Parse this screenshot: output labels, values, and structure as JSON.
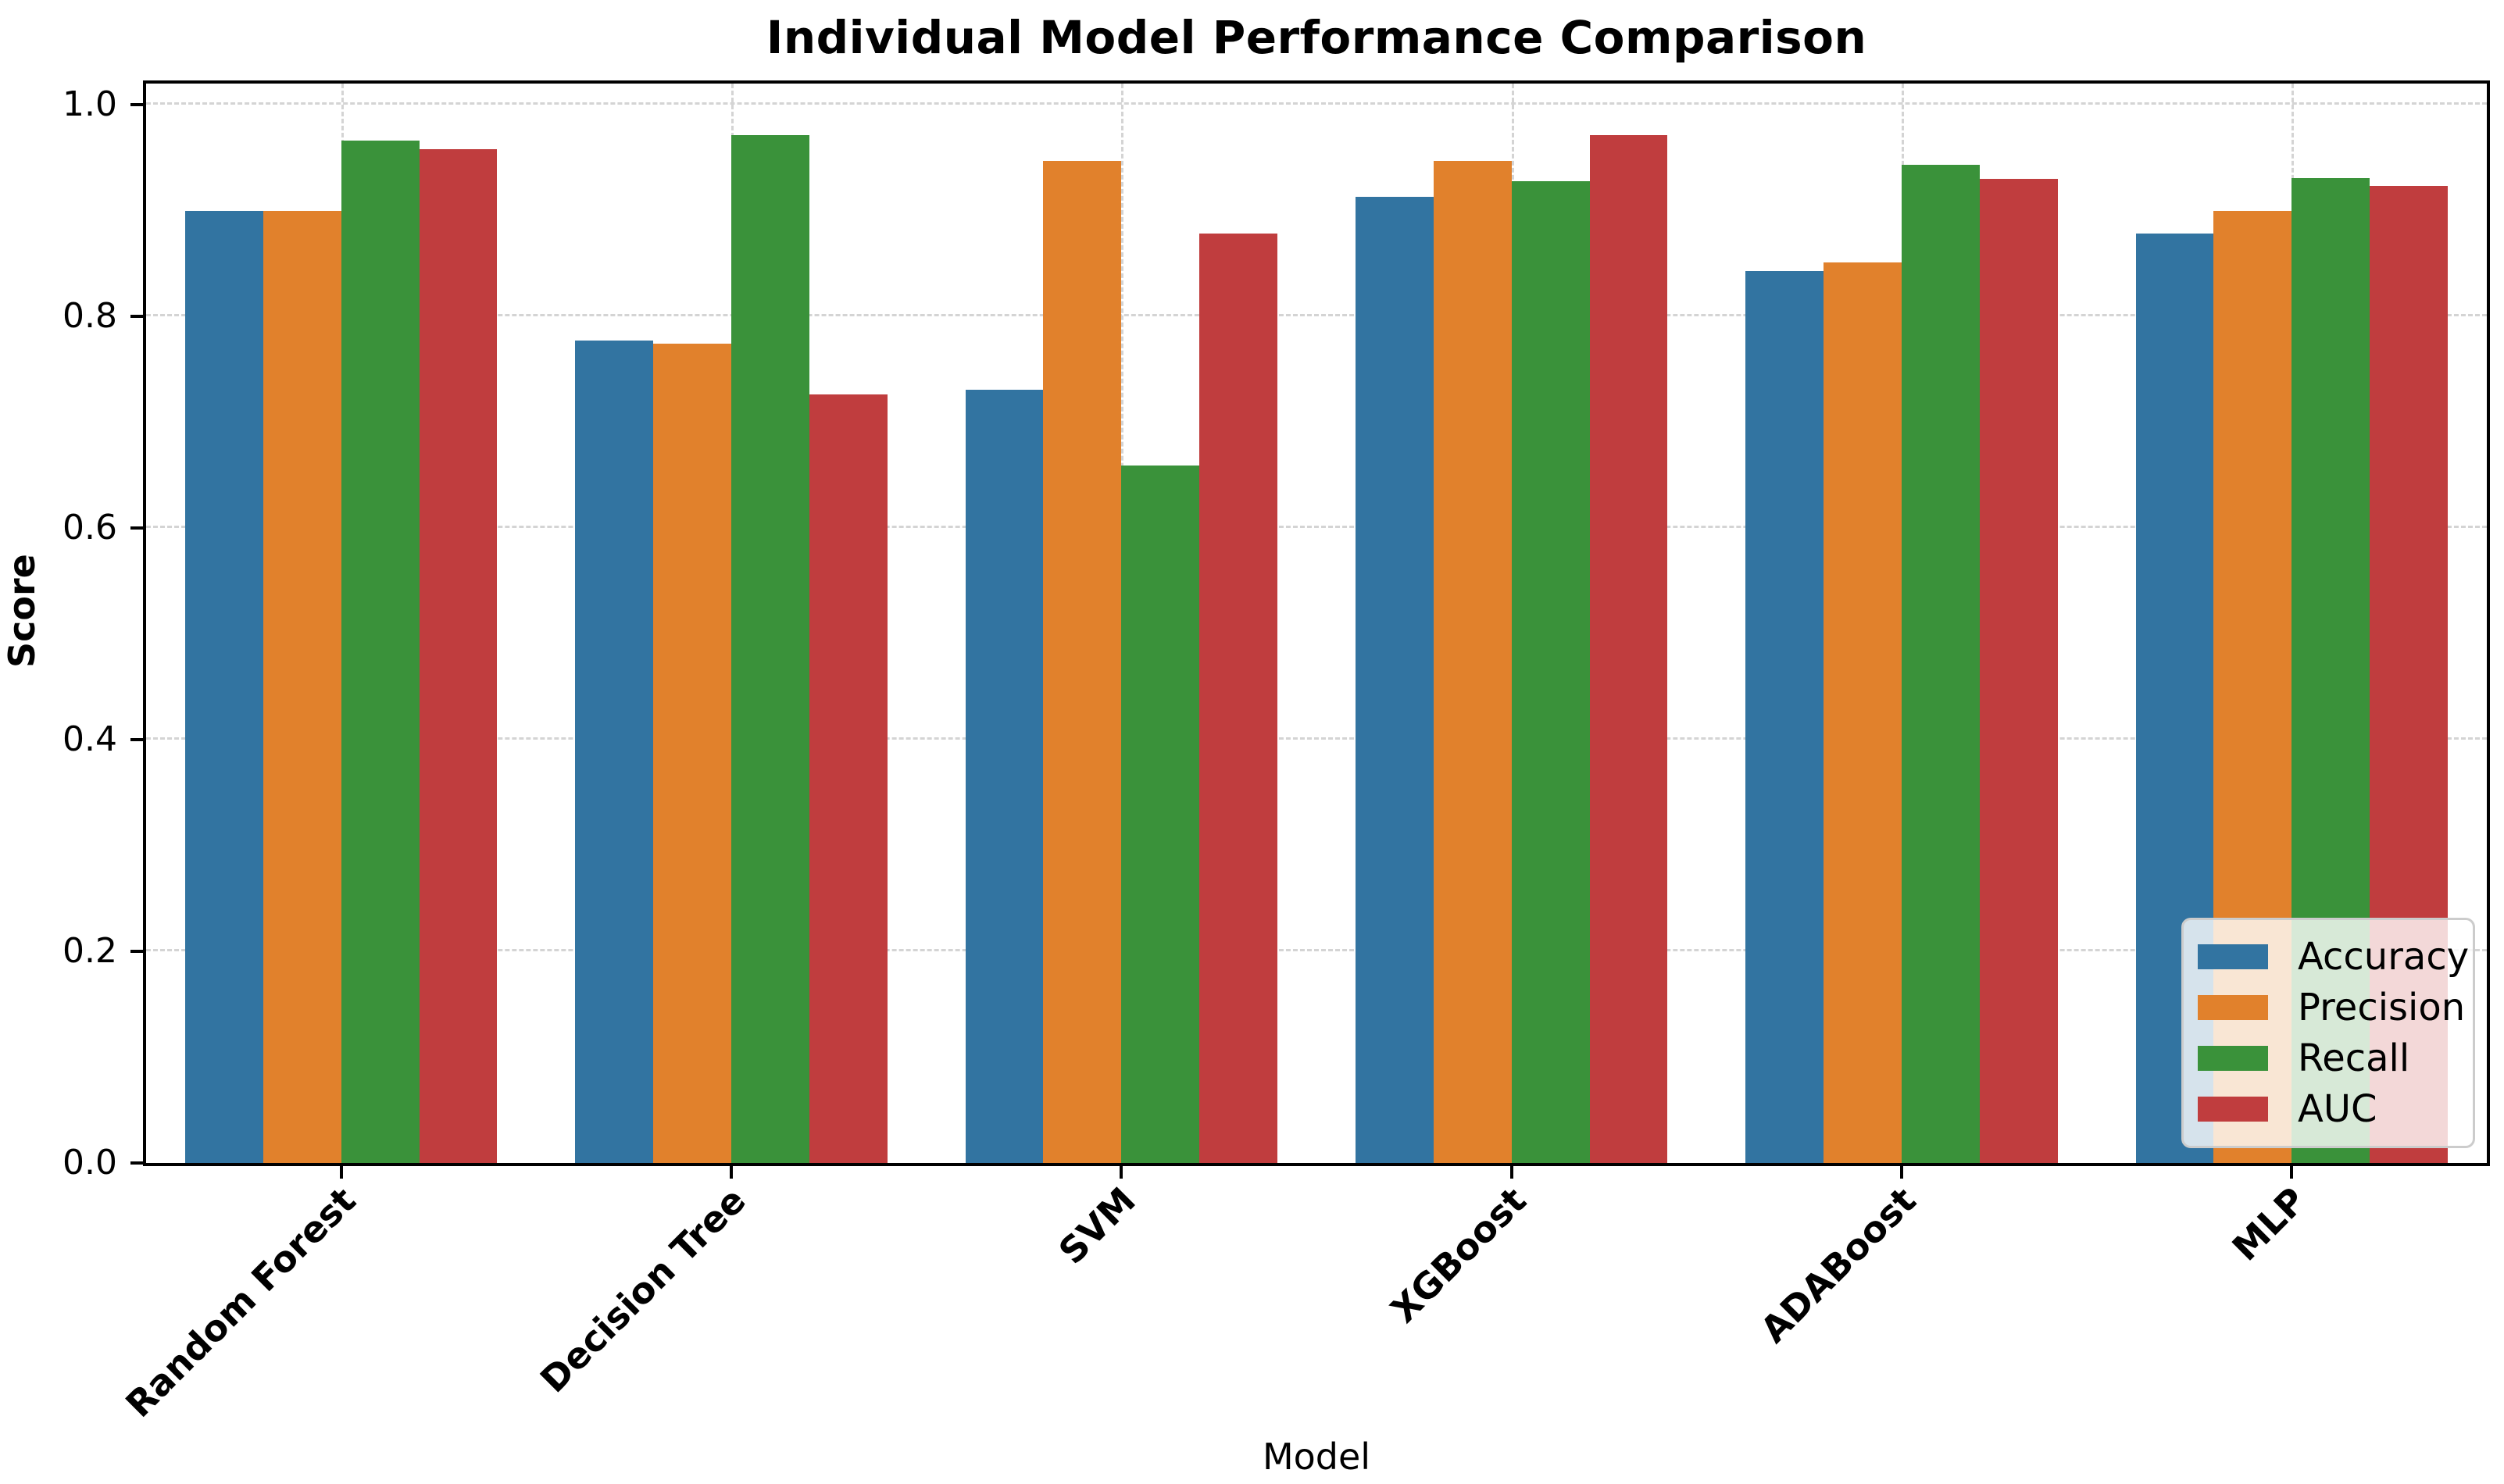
{
  "chart_data": {
    "type": "bar",
    "title": "Individual Model Performance Comparison",
    "xlabel": "Model",
    "ylabel": "Score",
    "categories": [
      "Random Forest",
      "Decision Tree",
      "SVM",
      "XGBoost",
      "ADABoost",
      "MLP"
    ],
    "series": [
      {
        "name": "Accuracy",
        "color": "#3274a1",
        "values": [
          0.9,
          0.777,
          0.731,
          0.913,
          0.843,
          0.878
        ]
      },
      {
        "name": "Precision",
        "color": "#e1812c",
        "values": [
          0.9,
          0.774,
          0.947,
          0.947,
          0.851,
          0.9
        ]
      },
      {
        "name": "Recall",
        "color": "#3a923a",
        "values": [
          0.966,
          0.971,
          0.659,
          0.928,
          0.943,
          0.931
        ]
      },
      {
        "name": "AUC",
        "color": "#c03d3e",
        "values": [
          0.958,
          0.726,
          0.878,
          0.971,
          0.93,
          0.923
        ]
      }
    ],
    "ylim": [
      0,
      1.02
    ],
    "yticks": [
      0.0,
      0.2,
      0.4,
      0.6,
      0.8,
      1.0
    ],
    "ytick_labels": [
      "0.0",
      "0.2",
      "0.4",
      "0.6",
      "0.8",
      "1.0"
    ],
    "grid": "dashed horizontal and vertical gridlines",
    "legend_position": "lower right",
    "bar_width_fraction": 0.2,
    "style": {
      "grid_color": "#c6c6c6",
      "spine_color": "#000000",
      "background": "#ffffff",
      "legend_edge_color": "#cccccc"
    }
  }
}
